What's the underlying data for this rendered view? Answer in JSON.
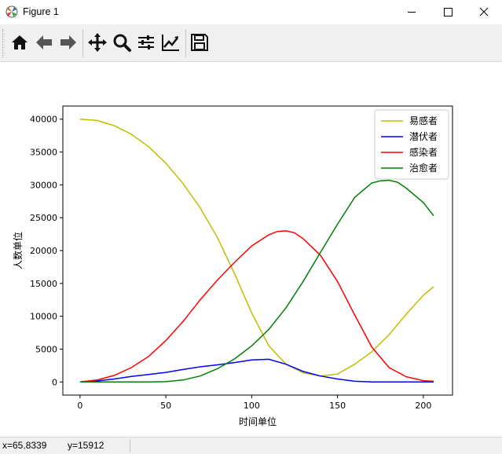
{
  "window": {
    "title": "Figure 1"
  },
  "toolbar": {
    "buttons": [
      "home-icon",
      "back-arrow-icon",
      "forward-arrow-icon",
      "pan-icon",
      "zoom-icon",
      "configure-subplots-icon",
      "edit-axis-icon",
      "save-icon"
    ]
  },
  "status": {
    "x_readout": "x=65.8339",
    "y_readout": "y=15912"
  },
  "chart_data": {
    "type": "line",
    "xlabel": "时间单位",
    "ylabel": "人数单位",
    "xlim": [
      -10,
      217
    ],
    "ylim": [
      -2000,
      42000
    ],
    "xticks": [
      0,
      50,
      100,
      150,
      200
    ],
    "yticks": [
      0,
      5000,
      10000,
      15000,
      20000,
      25000,
      30000,
      35000,
      40000
    ],
    "legend_position": "upper right",
    "grid": false,
    "series": [
      {
        "name": "易感者",
        "color": "#bfbf00",
        "x": [
          0,
          10,
          20,
          30,
          40,
          50,
          60,
          70,
          80,
          90,
          100,
          110,
          120,
          130,
          140,
          150,
          160,
          170,
          180,
          190,
          200,
          206
        ],
        "y": [
          40000,
          39800,
          39000,
          37700,
          35800,
          33300,
          30200,
          26500,
          22000,
          16500,
          10500,
          5500,
          2700,
          1400,
          900,
          1200,
          2700,
          4600,
          7200,
          10300,
          13200,
          14500
        ]
      },
      {
        "name": "潜伏者",
        "color": "#0000ff",
        "x": [
          0,
          10,
          20,
          30,
          40,
          50,
          60,
          70,
          80,
          90,
          100,
          110,
          120,
          130,
          140,
          150,
          160,
          170,
          180,
          190,
          200,
          206
        ],
        "y": [
          0,
          150,
          450,
          850,
          1150,
          1450,
          1900,
          2300,
          2600,
          2950,
          3350,
          3450,
          2700,
          1600,
          900,
          450,
          100,
          0,
          0,
          0,
          0,
          0
        ]
      },
      {
        "name": "感染者",
        "color": "#ff0000",
        "x": [
          0,
          10,
          20,
          30,
          40,
          50,
          60,
          70,
          80,
          90,
          100,
          110,
          115,
          120,
          125,
          130,
          140,
          150,
          160,
          170,
          180,
          190,
          200,
          206
        ],
        "y": [
          0,
          300,
          1000,
          2200,
          3900,
          6300,
          9200,
          12500,
          15500,
          18200,
          20700,
          22400,
          22900,
          23000,
          22700,
          21800,
          19300,
          15300,
          10200,
          5300,
          2200,
          800,
          200,
          100
        ]
      },
      {
        "name": "治愈者",
        "color": "#008000",
        "x": [
          0,
          10,
          20,
          30,
          40,
          50,
          60,
          70,
          80,
          90,
          100,
          110,
          120,
          130,
          140,
          150,
          160,
          170,
          175,
          180,
          185,
          190,
          200,
          206
        ],
        "y": [
          0,
          0,
          0,
          0,
          0,
          50,
          300,
          900,
          2000,
          3500,
          5500,
          8000,
          11300,
          15300,
          19700,
          24000,
          28100,
          30300,
          30600,
          30700,
          30400,
          29500,
          27300,
          25300
        ]
      }
    ]
  }
}
